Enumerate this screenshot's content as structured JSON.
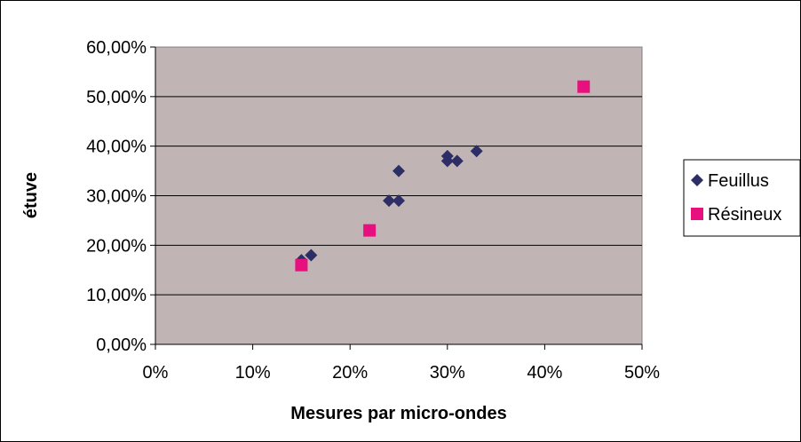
{
  "chart_data": {
    "type": "scatter",
    "xlabel": "Mesures par micro-ondes",
    "ylabel": "étuve",
    "xlim": [
      0,
      50
    ],
    "ylim": [
      0,
      60
    ],
    "x_ticks": [
      "0%",
      "10%",
      "20%",
      "30%",
      "40%",
      "50%"
    ],
    "y_ticks": [
      "0,00%",
      "10,00%",
      "20,00%",
      "30,00%",
      "40,00%",
      "50,00%",
      "60,00%"
    ],
    "grid": "horizontal",
    "legend_position": "right",
    "plot_background": "#C0B4B4",
    "series": [
      {
        "name": "Feuillus",
        "marker": "diamond",
        "color": "#2E2E66",
        "points": [
          [
            15,
            17
          ],
          [
            16,
            18
          ],
          [
            24,
            29
          ],
          [
            25,
            29
          ],
          [
            25,
            35
          ],
          [
            30,
            37
          ],
          [
            30,
            38
          ],
          [
            31,
            37
          ],
          [
            33,
            39
          ]
        ]
      },
      {
        "name": "Résineux",
        "marker": "square",
        "color": "#E8107E",
        "points": [
          [
            15,
            16
          ],
          [
            22,
            23
          ],
          [
            44,
            52
          ]
        ]
      }
    ]
  }
}
